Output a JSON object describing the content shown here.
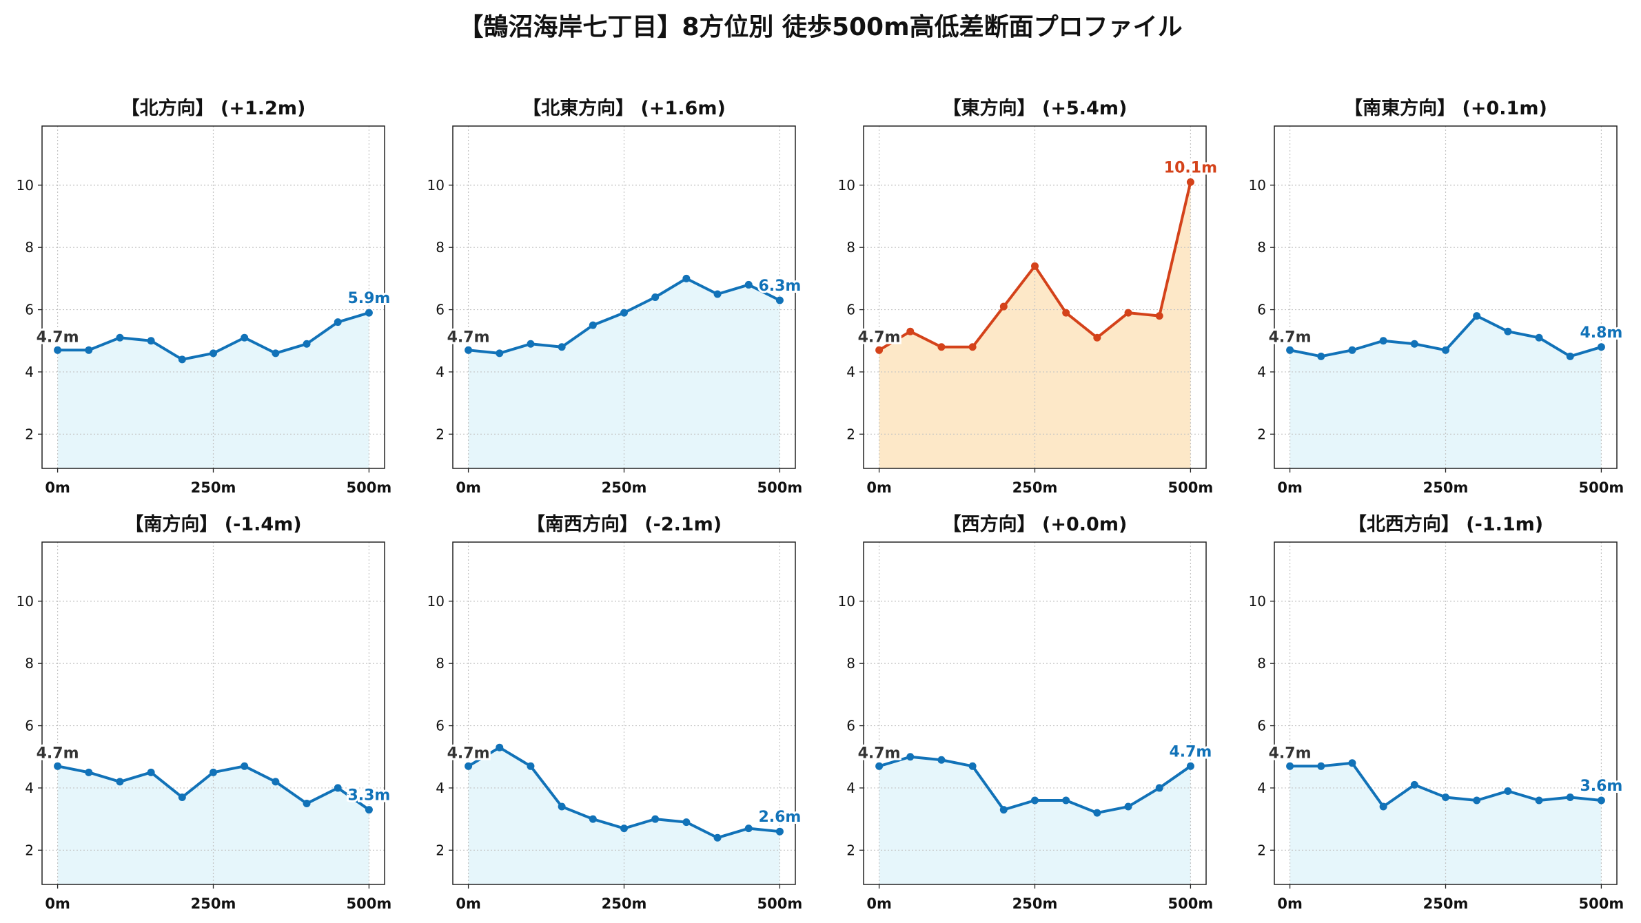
{
  "title": "【鵠沼海岸七丁目】8方位別 徒歩500m高低差断面プロファイル",
  "colors": {
    "normal_line": "#1172b8",
    "normal_fill": "#e6f6fb",
    "highlight_line": "#d4421a",
    "highlight_fill": "#fde8c8",
    "start_label": "#333333"
  },
  "chart_data": [
    {
      "type": "area",
      "title": "【北方向】 (+1.2m)",
      "highlight": false,
      "x": [
        0,
        50,
        100,
        150,
        200,
        250,
        300,
        350,
        400,
        450,
        500
      ],
      "y": [
        4.7,
        4.7,
        5.1,
        5.0,
        4.4,
        4.6,
        5.1,
        4.6,
        4.9,
        5.6,
        5.9
      ],
      "start_label": "4.7m",
      "end_label": "5.9m",
      "xticks": [
        "0m",
        "250m",
        "500m"
      ],
      "yticks": [
        2,
        4,
        6,
        8,
        10
      ],
      "ylim": [
        0.9,
        11.9
      ],
      "xlim": [
        -25,
        525
      ],
      "grid": true
    },
    {
      "type": "area",
      "title": "【北東方向】 (+1.6m)",
      "highlight": false,
      "x": [
        0,
        50,
        100,
        150,
        200,
        250,
        300,
        350,
        400,
        450,
        500
      ],
      "y": [
        4.7,
        4.6,
        4.9,
        4.8,
        5.5,
        5.9,
        6.4,
        7.0,
        6.5,
        6.8,
        6.3
      ],
      "start_label": "4.7m",
      "end_label": "6.3m",
      "xticks": [
        "0m",
        "250m",
        "500m"
      ],
      "yticks": [
        2,
        4,
        6,
        8,
        10
      ],
      "ylim": [
        0.9,
        11.9
      ],
      "xlim": [
        -25,
        525
      ],
      "grid": true
    },
    {
      "type": "area",
      "title": "【東方向】 (+5.4m)",
      "highlight": true,
      "x": [
        0,
        50,
        100,
        150,
        200,
        250,
        300,
        350,
        400,
        450,
        500
      ],
      "y": [
        4.7,
        5.3,
        4.8,
        4.8,
        6.1,
        7.4,
        5.9,
        5.1,
        5.9,
        5.8,
        10.1
      ],
      "start_label": "4.7m",
      "end_label": "10.1m",
      "xticks": [
        "0m",
        "250m",
        "500m"
      ],
      "yticks": [
        2,
        4,
        6,
        8,
        10
      ],
      "ylim": [
        0.9,
        11.9
      ],
      "xlim": [
        -25,
        525
      ],
      "grid": true
    },
    {
      "type": "area",
      "title": "【南東方向】 (+0.1m)",
      "highlight": false,
      "x": [
        0,
        50,
        100,
        150,
        200,
        250,
        300,
        350,
        400,
        450,
        500
      ],
      "y": [
        4.7,
        4.5,
        4.7,
        5.0,
        4.9,
        4.7,
        5.8,
        5.3,
        5.1,
        4.5,
        4.8
      ],
      "start_label": "4.7m",
      "end_label": "4.8m",
      "xticks": [
        "0m",
        "250m",
        "500m"
      ],
      "yticks": [
        2,
        4,
        6,
        8,
        10
      ],
      "ylim": [
        0.9,
        11.9
      ],
      "xlim": [
        -25,
        525
      ],
      "grid": true
    },
    {
      "type": "area",
      "title": "【南方向】 (-1.4m)",
      "highlight": false,
      "x": [
        0,
        50,
        100,
        150,
        200,
        250,
        300,
        350,
        400,
        450,
        500
      ],
      "y": [
        4.7,
        4.5,
        4.2,
        4.5,
        3.7,
        4.5,
        4.7,
        4.2,
        3.5,
        4.0,
        3.3
      ],
      "start_label": "4.7m",
      "end_label": "3.3m",
      "xticks": [
        "0m",
        "250m",
        "500m"
      ],
      "yticks": [
        2,
        4,
        6,
        8,
        10
      ],
      "ylim": [
        0.9,
        11.9
      ],
      "xlim": [
        -25,
        525
      ],
      "grid": true
    },
    {
      "type": "area",
      "title": "【南西方向】 (-2.1m)",
      "highlight": false,
      "x": [
        0,
        50,
        100,
        150,
        200,
        250,
        300,
        350,
        400,
        450,
        500
      ],
      "y": [
        4.7,
        5.3,
        4.7,
        3.4,
        3.0,
        2.7,
        3.0,
        2.9,
        2.4,
        2.7,
        2.6
      ],
      "start_label": "4.7m",
      "end_label": "2.6m",
      "xticks": [
        "0m",
        "250m",
        "500m"
      ],
      "yticks": [
        2,
        4,
        6,
        8,
        10
      ],
      "ylim": [
        0.9,
        11.9
      ],
      "xlim": [
        -25,
        525
      ],
      "grid": true
    },
    {
      "type": "area",
      "title": "【西方向】 (+0.0m)",
      "highlight": false,
      "x": [
        0,
        50,
        100,
        150,
        200,
        250,
        300,
        350,
        400,
        450,
        500
      ],
      "y": [
        4.7,
        5.0,
        4.9,
        4.7,
        3.3,
        3.6,
        3.6,
        3.2,
        3.4,
        4.0,
        4.7
      ],
      "start_label": "4.7m",
      "end_label": "4.7m",
      "xticks": [
        "0m",
        "250m",
        "500m"
      ],
      "yticks": [
        2,
        4,
        6,
        8,
        10
      ],
      "ylim": [
        0.9,
        11.9
      ],
      "xlim": [
        -25,
        525
      ],
      "grid": true
    },
    {
      "type": "area",
      "title": "【北西方向】 (-1.1m)",
      "highlight": false,
      "x": [
        0,
        50,
        100,
        150,
        200,
        250,
        300,
        350,
        400,
        450,
        500
      ],
      "y": [
        4.7,
        4.7,
        4.8,
        3.4,
        4.1,
        3.7,
        3.6,
        3.9,
        3.6,
        3.7,
        3.6
      ],
      "start_label": "4.7m",
      "end_label": "3.6m",
      "xticks": [
        "0m",
        "250m",
        "500m"
      ],
      "yticks": [
        2,
        4,
        6,
        8,
        10
      ],
      "ylim": [
        0.9,
        11.9
      ],
      "xlim": [
        -25,
        525
      ],
      "grid": true
    }
  ]
}
